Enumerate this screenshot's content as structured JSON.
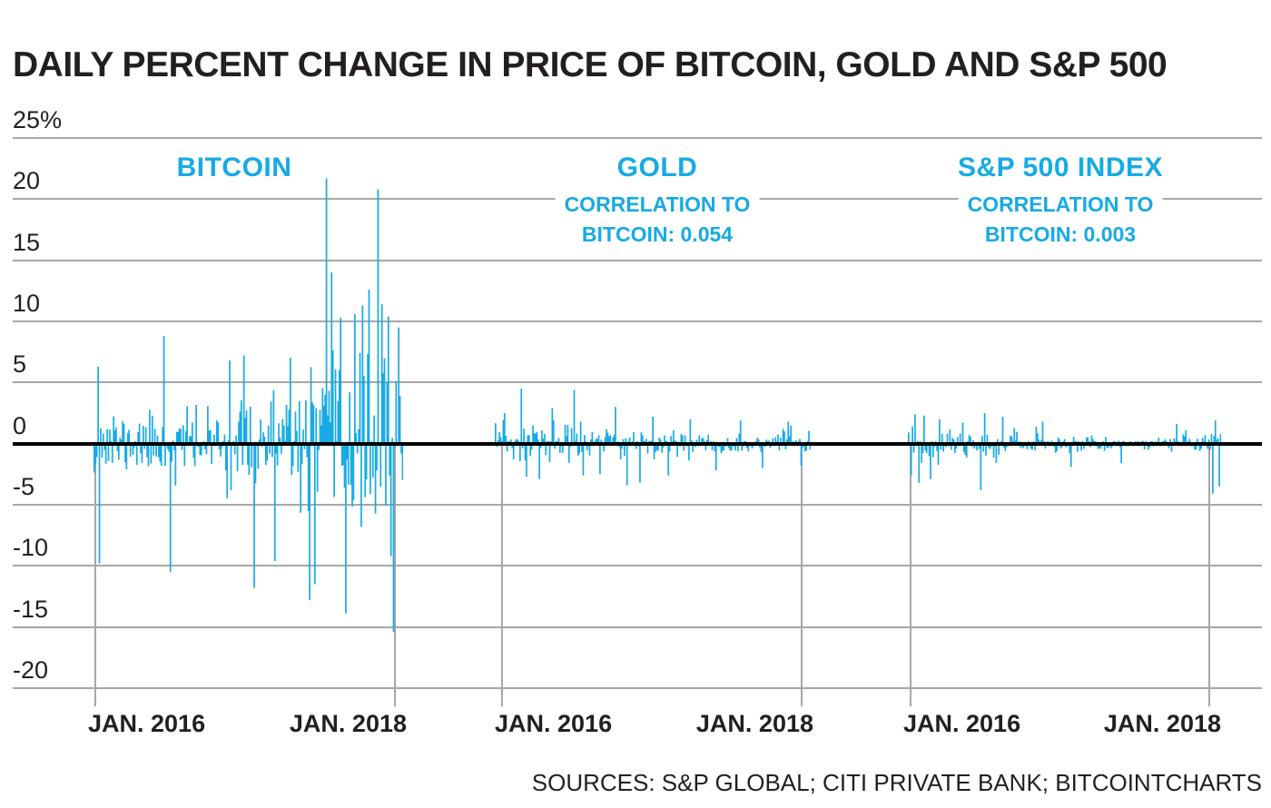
{
  "title": "DAILY PERCENT CHANGE IN PRICE OF BITCOIN, GOLD AND S&P 500",
  "source": "SOURCES: S&P GLOBAL; CITI PRIVATE BANK; BITCOINTCHARTS",
  "colors": {
    "accent_blue": "#17AAE4",
    "text_black": "#231F20",
    "grid_gray": "#A7A7A7",
    "zero_line": "#000000",
    "background": "#FFFFFF"
  },
  "chart_data": {
    "type": "bar",
    "title": "DAILY PERCENT CHANGE IN PRICE OF BITCOIN, GOLD AND S&P 500",
    "ylabel": "percent change",
    "unit": "%",
    "ylim": [
      -22.5,
      25
    ],
    "grid": true,
    "y_ticks": [
      {
        "value": 25,
        "label": "25%"
      },
      {
        "value": 20,
        "label": "20"
      },
      {
        "value": 15,
        "label": "15"
      },
      {
        "value": 10,
        "label": "10"
      },
      {
        "value": 5,
        "label": "5"
      },
      {
        "value": 0,
        "label": "0"
      },
      {
        "value": -5,
        "label": "-5"
      },
      {
        "value": -10,
        "label": "-10"
      },
      {
        "value": -15,
        "label": "-15"
      },
      {
        "value": -20,
        "label": "-20"
      }
    ],
    "panels": [
      {
        "id": "bitcoin",
        "title": "BITCOIN",
        "subtitle_lines": [],
        "correlation_to_bitcoin": null,
        "x_tick_labels": [
          "JAN. 2016",
          "JAN. 2018"
        ],
        "approx_extremes": {
          "max_pct": 21.7,
          "min_pct": -15.4
        },
        "series_spec": {
          "seed": 11,
          "n": 240,
          "sigma_keyframes": [
            [
              0,
              2.6
            ],
            [
              0.06,
              1.8
            ],
            [
              0.16,
              1.4
            ],
            [
              0.26,
              2.1
            ],
            [
              0.36,
              1.6
            ],
            [
              0.5,
              2.3
            ],
            [
              0.62,
              3.2
            ],
            [
              0.75,
              3.8
            ],
            [
              0.88,
              4.3
            ],
            [
              1,
              4.2
            ]
          ],
          "spikes": [
            [
              0.013,
              6.3
            ],
            [
              0.018,
              -9.8
            ],
            [
              0.225,
              8.8
            ],
            [
              0.245,
              -10.5
            ],
            [
              0.44,
              6.8
            ],
            [
              0.485,
              7.2
            ],
            [
              0.52,
              -11.8
            ],
            [
              0.585,
              -9.6
            ],
            [
              0.7,
              -12.8
            ],
            [
              0.715,
              -11.5
            ],
            [
              0.754,
              21.7
            ],
            [
              0.768,
              14.0
            ],
            [
              0.8,
              10.3
            ],
            [
              0.815,
              -13.9
            ],
            [
              0.845,
              10.6
            ],
            [
              0.87,
              11.3
            ],
            [
              0.89,
              12.6
            ],
            [
              0.92,
              20.8
            ],
            [
              0.935,
              11.4
            ],
            [
              0.955,
              10.4
            ],
            [
              0.962,
              -9.2
            ],
            [
              0.97,
              -15.4
            ],
            [
              0.988,
              9.5
            ]
          ]
        }
      },
      {
        "id": "gold",
        "title": "GOLD",
        "subtitle_lines": [
          "CORRELATION TO",
          "BITCOIN: 0.054"
        ],
        "correlation_to_bitcoin": 0.054,
        "x_tick_labels": [
          "JAN. 2016",
          "JAN. 2018"
        ],
        "approx_extremes": {
          "max_pct": 4.5,
          "min_pct": -3.4
        },
        "series_spec": {
          "seed": 23,
          "n": 245,
          "sigma_keyframes": [
            [
              0,
              1.05
            ],
            [
              0.12,
              1.25
            ],
            [
              0.3,
              1.0
            ],
            [
              0.5,
              0.75
            ],
            [
              0.7,
              0.6
            ],
            [
              0.85,
              0.55
            ],
            [
              1,
              0.65
            ]
          ],
          "spikes": [
            [
              0.03,
              2.5
            ],
            [
              0.08,
              4.5
            ],
            [
              0.1,
              -2.7
            ],
            [
              0.14,
              -2.9
            ],
            [
              0.18,
              2.9
            ],
            [
              0.25,
              4.4
            ],
            [
              0.28,
              -2.6
            ],
            [
              0.33,
              -2.5
            ],
            [
              0.38,
              3.0
            ],
            [
              0.42,
              -3.4
            ],
            [
              0.46,
              -3.2
            ],
            [
              0.5,
              2.2
            ],
            [
              0.55,
              -2.6
            ],
            [
              0.62,
              2.0
            ],
            [
              0.7,
              -2.2
            ],
            [
              0.78,
              1.9
            ],
            [
              0.85,
              -2.0
            ],
            [
              0.93,
              1.8
            ],
            [
              0.97,
              -1.8
            ]
          ]
        }
      },
      {
        "id": "sp500",
        "title": "S&P 500 INDEX",
        "subtitle_lines": [
          "CORRELATION TO",
          "BITCOIN: 0.003"
        ],
        "correlation_to_bitcoin": 0.003,
        "x_tick_labels": [
          "JAN. 2016",
          "JAN. 2018"
        ],
        "approx_extremes": {
          "max_pct": 2.8,
          "min_pct": -4.1
        },
        "series_spec": {
          "seed": 37,
          "n": 243,
          "sigma_keyframes": [
            [
              0,
              1.0
            ],
            [
              0.1,
              0.85
            ],
            [
              0.2,
              0.7
            ],
            [
              0.32,
              0.75
            ],
            [
              0.45,
              0.5
            ],
            [
              0.65,
              0.35
            ],
            [
              0.8,
              0.35
            ],
            [
              0.9,
              0.5
            ],
            [
              1,
              0.9
            ]
          ],
          "spikes": [
            [
              0.01,
              -2.6
            ],
            [
              0.02,
              2.4
            ],
            [
              0.035,
              -3.2
            ],
            [
              0.05,
              2.3
            ],
            [
              0.07,
              -2.9
            ],
            [
              0.1,
              2.0
            ],
            [
              0.23,
              -3.8
            ],
            [
              0.245,
              2.5
            ],
            [
              0.3,
              2.2
            ],
            [
              0.43,
              1.8
            ],
            [
              0.52,
              -1.9
            ],
            [
              0.68,
              -1.6
            ],
            [
              0.86,
              1.6
            ],
            [
              0.975,
              -4.1
            ],
            [
              0.985,
              1.9
            ],
            [
              0.995,
              -3.5
            ]
          ]
        }
      }
    ]
  }
}
